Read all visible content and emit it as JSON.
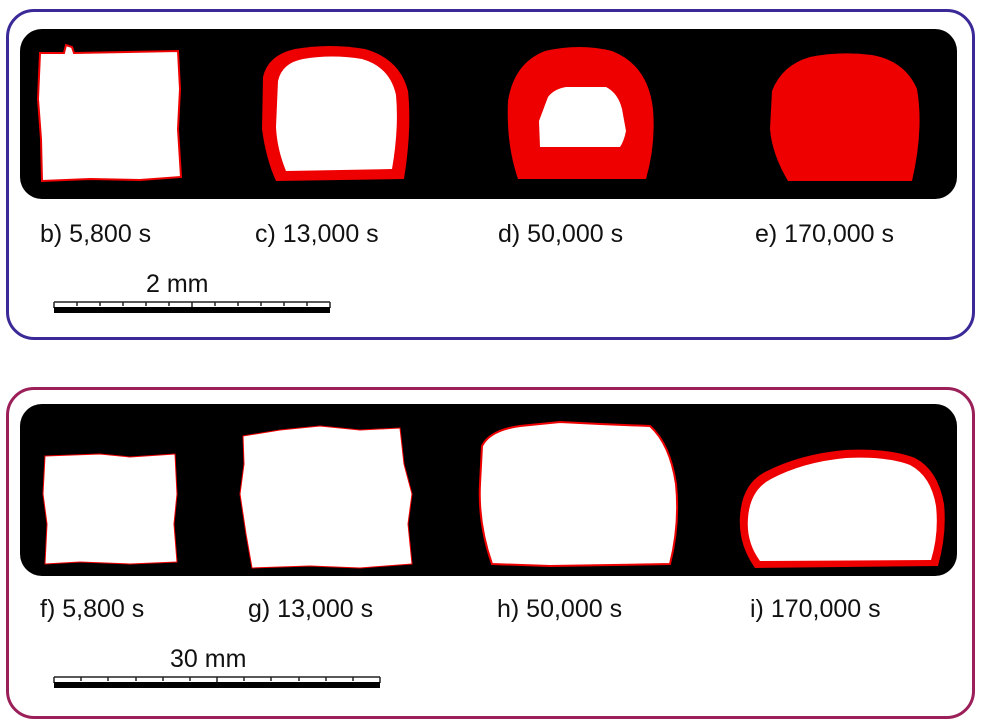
{
  "panels": [
    {
      "name": "top",
      "labels": [
        "b) 5,800 s",
        "c) 13,000 s",
        "d) 50,000 s",
        "e) 170,000 s"
      ],
      "scale_label": "2 mm"
    },
    {
      "name": "bottom",
      "labels": [
        "f) 5,800 s",
        "g) 13,000 s",
        "h) 50,000 s",
        "i) 170,000 s"
      ],
      "scale_label": "30 mm"
    }
  ],
  "colors": {
    "top_border": "#3a2a97",
    "bottom_border": "#9b1f59",
    "background_strip": "#000000",
    "converted_region": "#ee0000",
    "unconverted_region": "#ffffff"
  }
}
